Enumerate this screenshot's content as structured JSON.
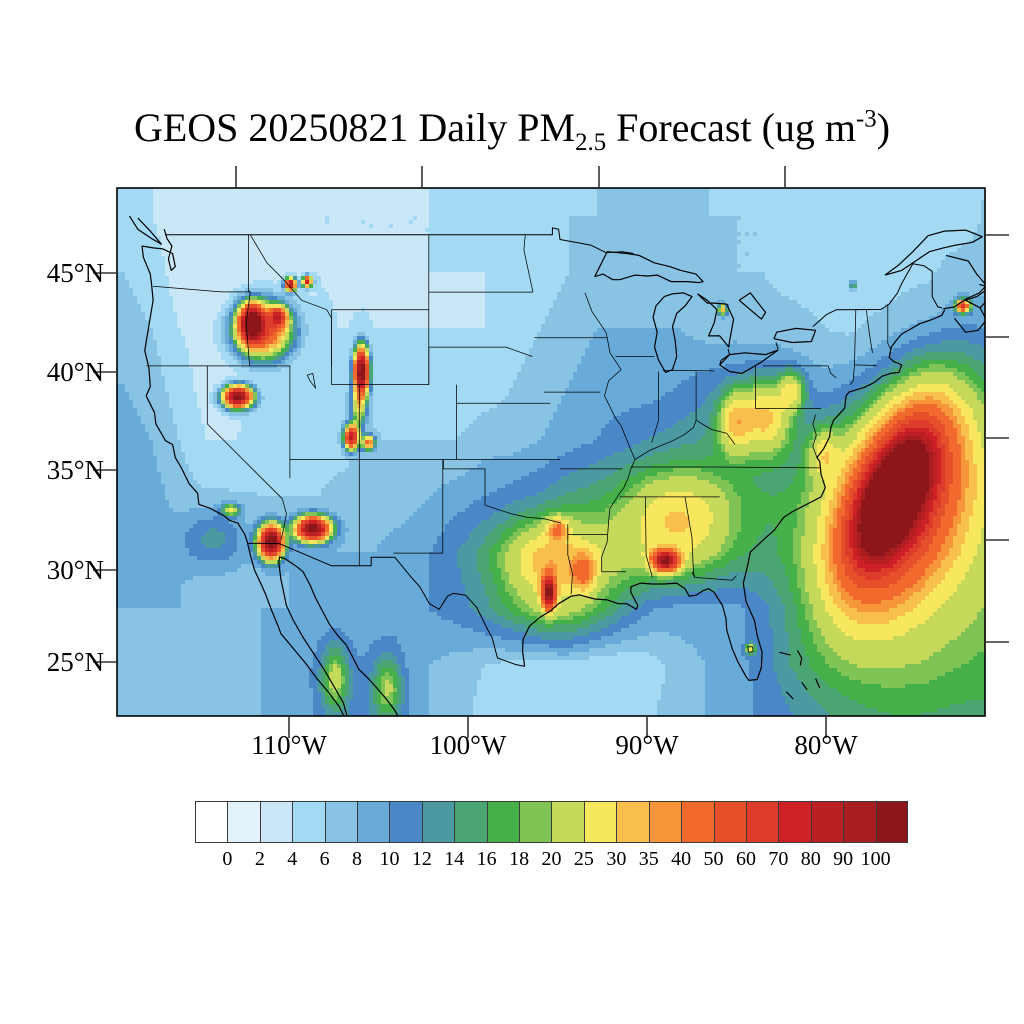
{
  "title": {
    "prefix": "GEOS 20250821 Daily PM",
    "subscript": "2.5",
    "middle": " Forecast (ug m",
    "superscript": "-3",
    "suffix": ")"
  },
  "axes": {
    "y_tick_labels": [
      "45°N",
      "40°N",
      "35°N",
      "30°N",
      "25°N"
    ],
    "x_tick_labels": [
      "110°W",
      "100°W",
      "90°W",
      "80°W"
    ]
  },
  "colorbar": {
    "tick_labels": [
      "0",
      "2",
      "4",
      "6",
      "8",
      "10",
      "12",
      "14",
      "16",
      "18",
      "20",
      "25",
      "30",
      "35",
      "40",
      "50",
      "60",
      "70",
      "80",
      "90",
      "100"
    ],
    "colors": [
      "#ffffff",
      "#e2f1fa",
      "#c9e7f7",
      "#a4d9f3",
      "#88c3e3",
      "#68abd9",
      "#4a87c6",
      "#4b9aa1",
      "#4ba572",
      "#46b04b",
      "#7fc455",
      "#c5da5b",
      "#f6e75e",
      "#f8bf4d",
      "#f69539",
      "#f2692d",
      "#e54f2a",
      "#dd3c2b",
      "#cd2127",
      "#ba2023",
      "#a81d20",
      "#8d161a"
    ]
  },
  "chart_data": {
    "type": "heatmap",
    "title": "GEOS 20250821 Daily PM2.5 Forecast (ug m-3)",
    "units": "ug m-3",
    "xlabel_ticks": [
      "110°W",
      "100°W",
      "90°W",
      "80°W"
    ],
    "ylabel_ticks": [
      "45°N",
      "40°N",
      "35°N",
      "30°N",
      "25°N"
    ],
    "levels": [
      0,
      2,
      4,
      6,
      8,
      10,
      12,
      14,
      16,
      18,
      20,
      25,
      30,
      35,
      40,
      50,
      60,
      70,
      80,
      90,
      100
    ],
    "lon_range": [
      -126.5,
      -64.0
    ],
    "lat_range": [
      23.3,
      51.5
    ],
    "base_grid": {
      "lon_start": -126,
      "lon_step": 2,
      "lat_start": 50,
      "lat_step": -3,
      "values": [
        [
          5,
          4,
          3,
          3,
          3,
          3,
          4,
          4,
          4,
          4,
          4,
          4,
          5,
          5,
          5,
          5,
          6,
          6,
          7,
          7,
          7,
          6,
          6,
          6,
          6,
          5,
          5,
          5,
          5,
          5,
          5,
          6
        ],
        [
          6,
          5,
          3,
          2,
          3,
          3,
          3,
          4,
          4,
          4,
          4,
          4,
          4,
          4,
          5,
          5,
          6,
          7,
          8,
          7,
          7,
          7,
          6,
          6,
          5,
          5,
          5,
          5,
          5,
          5,
          6,
          6
        ],
        [
          7,
          6,
          4,
          3,
          3,
          4,
          4,
          4,
          4,
          4,
          4,
          4,
          4,
          4,
          5,
          6,
          7,
          8,
          8,
          8,
          8,
          7,
          7,
          7,
          7,
          6,
          5,
          5,
          5,
          5,
          6,
          7
        ],
        [
          8,
          7,
          5,
          3,
          3,
          4,
          4,
          4,
          5,
          5,
          5,
          5,
          5,
          5,
          6,
          7,
          8,
          9,
          9,
          9,
          10,
          11,
          11,
          10,
          9,
          8,
          7,
          6,
          6,
          7,
          7,
          8
        ],
        [
          9,
          8,
          6,
          4,
          4,
          5,
          5,
          5,
          5,
          6,
          6,
          6,
          6,
          7,
          7,
          8,
          9,
          10,
          11,
          12,
          13,
          14,
          14,
          13,
          12,
          12,
          10,
          8,
          8,
          9,
          10,
          11
        ],
        [
          10,
          9,
          7,
          6,
          6,
          6,
          6,
          6,
          7,
          7,
          7,
          8,
          9,
          10,
          11,
          12,
          14,
          15,
          16,
          17,
          17,
          17,
          16,
          15,
          14,
          13,
          12,
          12,
          13,
          14,
          15,
          16
        ],
        [
          9,
          9,
          8,
          7,
          7,
          7,
          8,
          8,
          8,
          8,
          9,
          10,
          12,
          14,
          16,
          18,
          20,
          21,
          21,
          20,
          19,
          17,
          15,
          14,
          13,
          13,
          14,
          15,
          16,
          17,
          18,
          18
        ],
        [
          8,
          8,
          8,
          7,
          7,
          8,
          8,
          9,
          9,
          9,
          10,
          10,
          11,
          13,
          16,
          19,
          20,
          17,
          13,
          10,
          9,
          9,
          9,
          10,
          11,
          12,
          14,
          15,
          16,
          17,
          18,
          18
        ],
        [
          7,
          7,
          7,
          7,
          7,
          8,
          9,
          10,
          10,
          10,
          9,
          8,
          7,
          6,
          5,
          5,
          5,
          4,
          4,
          5,
          7,
          8,
          9,
          10,
          12,
          13,
          14,
          15,
          16,
          17,
          17,
          17
        ],
        [
          7,
          7,
          7,
          7,
          8,
          8,
          9,
          10,
          11,
          11,
          10,
          8,
          7,
          5,
          5,
          4,
          4,
          4,
          5,
          6,
          7,
          8,
          9,
          10,
          11,
          12,
          13,
          14,
          15,
          15,
          15,
          15
        ]
      ]
    },
    "hotspots": [
      {
        "name": "idaho-fire-core",
        "lon": -116.8,
        "lat": 44.25,
        "sx": 0.75,
        "sy": 0.85,
        "amp": 115
      },
      {
        "name": "idaho-fire-halo",
        "lon": -116.0,
        "lat": 43.9,
        "sx": 1.8,
        "sy": 1.3,
        "amp": 50
      },
      {
        "name": "idaho-east-spur",
        "lon": -114.9,
        "lat": 44.6,
        "sx": 0.6,
        "sy": 0.5,
        "amp": 55
      },
      {
        "name": "montana-spot-1",
        "lon": -114.0,
        "lat": 46.35,
        "sx": 0.35,
        "sy": 0.3,
        "amp": 85
      },
      {
        "name": "montana-spot-2",
        "lon": -112.8,
        "lat": 46.5,
        "sx": 0.3,
        "sy": 0.25,
        "amp": 70
      },
      {
        "name": "nw-nevada-fire",
        "lon": -117.8,
        "lat": 40.35,
        "sx": 0.9,
        "sy": 0.5,
        "amp": 105
      },
      {
        "name": "sw-wyoming-fire",
        "lon": -108.9,
        "lat": 41.7,
        "sx": 0.45,
        "sy": 1.1,
        "amp": 110
      },
      {
        "name": "wyoming-green-tail",
        "lon": -109.1,
        "lat": 39.9,
        "sx": 0.5,
        "sy": 1.1,
        "amp": 20
      },
      {
        "name": "utah-south-spot-1",
        "lon": -109.6,
        "lat": 38.2,
        "sx": 0.45,
        "sy": 0.55,
        "amp": 80
      },
      {
        "name": "utah-south-spot-2",
        "lon": -108.4,
        "lat": 37.9,
        "sx": 0.4,
        "sy": 0.35,
        "amp": 40
      },
      {
        "name": "arizona-spot",
        "lon": -112.4,
        "lat": 33.3,
        "sx": 1.05,
        "sy": 0.55,
        "amp": 105
      },
      {
        "name": "imperial-mexicali-spot",
        "lon": -115.4,
        "lat": 32.6,
        "sx": 0.75,
        "sy": 0.75,
        "amp": 115
      },
      {
        "name": "los-angeles-smudge",
        "lon": -118.3,
        "lat": 34.3,
        "sx": 0.6,
        "sy": 0.3,
        "amp": 18
      },
      {
        "name": "texas-louisiana-broad",
        "lon": -95.3,
        "lat": 31.6,
        "sx": 3.0,
        "sy": 1.9,
        "amp": 15
      },
      {
        "name": "houston-core",
        "lon": -95.4,
        "lat": 29.9,
        "sx": 0.45,
        "sy": 0.8,
        "amp": 85
      },
      {
        "name": "louisiana-orange",
        "lon": -92.9,
        "lat": 31.0,
        "sx": 0.8,
        "sy": 0.9,
        "amp": 22
      },
      {
        "name": "ne-texas-orange",
        "lon": -94.8,
        "lat": 33.3,
        "sx": 0.7,
        "sy": 0.55,
        "amp": 20
      },
      {
        "name": "alabama-spot",
        "lon": -87.0,
        "lat": 31.6,
        "sx": 0.85,
        "sy": 0.5,
        "amp": 85
      },
      {
        "name": "southeast-broad",
        "lon": -86.0,
        "lat": 33.8,
        "sx": 3.4,
        "sy": 2.2,
        "amp": 13
      },
      {
        "name": "appalachia-band",
        "lon": -79.8,
        "lat": 39.3,
        "sx": 1.7,
        "sy": 1.8,
        "amp": 20
      },
      {
        "name": "pennsylvania-patch",
        "lon": -77.9,
        "lat": 40.7,
        "sx": 0.9,
        "sy": 1.0,
        "amp": 16
      },
      {
        "name": "ohio-valley-patch",
        "lon": -82.0,
        "lat": 39.0,
        "sx": 1.1,
        "sy": 1.5,
        "amp": 18
      },
      {
        "name": "virginia-coast-green",
        "lon": -75.6,
        "lat": 37.3,
        "sx": 1.0,
        "sy": 1.2,
        "amp": 12
      },
      {
        "name": "atlantic-plume-core",
        "lon": -70.6,
        "lat": 35.1,
        "sx": 1.6,
        "sy": 3.1,
        "amp": 130,
        "rot": -35
      },
      {
        "name": "atlantic-plume-halo",
        "lon": -70.3,
        "lat": 34.9,
        "sx": 3.0,
        "sy": 5.0,
        "amp": 55,
        "rot": -35
      },
      {
        "name": "atlantic-plume-wash",
        "lon": -69.8,
        "lat": 34.6,
        "sx": 5.0,
        "sy": 7.5,
        "amp": 24,
        "rot": -35
      },
      {
        "name": "nova-scotia-spot",
        "lon": -65.6,
        "lat": 45.2,
        "sx": 0.45,
        "sy": 0.3,
        "amp": 55
      },
      {
        "name": "quebec-dot",
        "lon": -73.5,
        "lat": 46.3,
        "sx": 0.22,
        "sy": 0.2,
        "amp": 14
      },
      {
        "name": "lake-huron-north-dot",
        "lon": -82.9,
        "lat": 45.0,
        "sx": 0.3,
        "sy": 0.28,
        "amp": 24
      },
      {
        "name": "florida-dot",
        "lon": -80.9,
        "lat": 26.9,
        "sx": 0.33,
        "sy": 0.25,
        "amp": 18
      },
      {
        "name": "mexico-west-green-1",
        "lon": -110.8,
        "lat": 25.3,
        "sx": 0.9,
        "sy": 1.6,
        "amp": 12
      },
      {
        "name": "mexico-west-green-2",
        "lon": -107.0,
        "lat": 24.8,
        "sx": 1.0,
        "sy": 1.6,
        "amp": 11
      },
      {
        "name": "socal-bight-teal",
        "lon": -119.5,
        "lat": 32.8,
        "sx": 2.2,
        "sy": 1.5,
        "amp": 6
      }
    ]
  }
}
